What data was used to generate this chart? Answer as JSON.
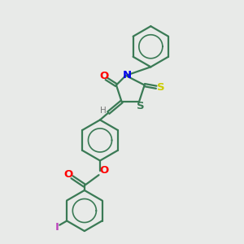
{
  "bg_color": "#e8eae8",
  "bond_color": "#3a7a55",
  "atom_colors": {
    "O": "#ff0000",
    "N": "#0000ee",
    "S_yellow": "#cccc00",
    "S_green": "#3a7a55",
    "H": "#777777",
    "I": "#bb44bb",
    "C": "#3a7a55"
  },
  "lw": 1.6,
  "fs": 8.5
}
